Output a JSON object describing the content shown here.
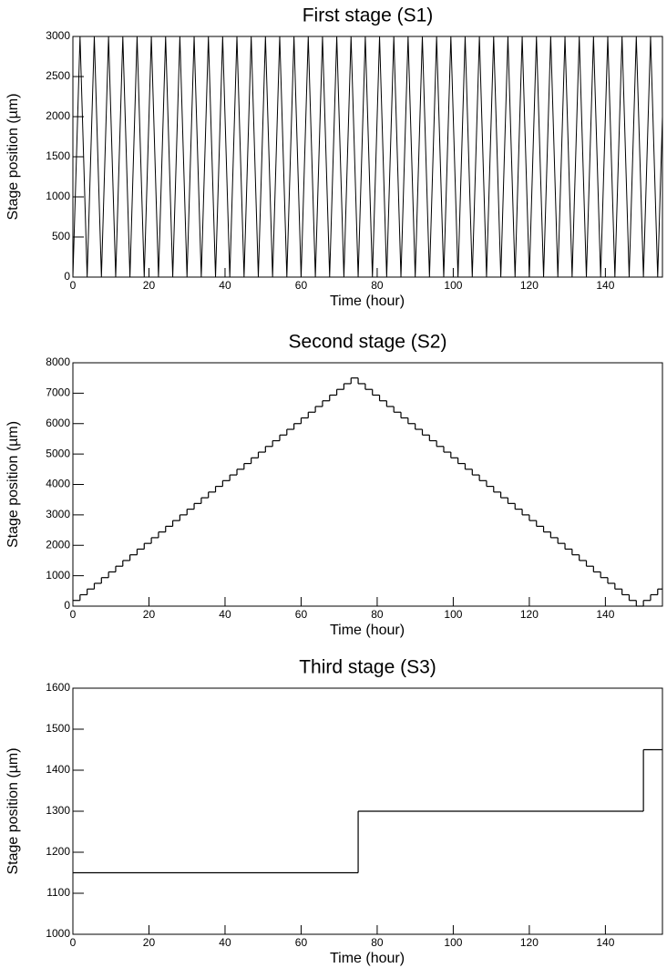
{
  "chart_data": [
    {
      "type": "line",
      "title": "First stage (S1)",
      "xlabel": "Time (hour)",
      "ylabel": "Stage position (µm)",
      "color": "#000000",
      "x": [
        0,
        1.875,
        3.75,
        5.625,
        7.5,
        9.375,
        11.25,
        13.125,
        15,
        16.875,
        18.75,
        20.625,
        22.5,
        24.375,
        26.25,
        28.125,
        30,
        31.875,
        33.75,
        35.625,
        37.5,
        39.375,
        41.25,
        43.125,
        45,
        46.875,
        48.75,
        50.625,
        52.5,
        54.375,
        56.25,
        58.125,
        60,
        61.875,
        63.75,
        65.625,
        67.5,
        69.375,
        71.25,
        73.125,
        75,
        76.875,
        78.75,
        80.625,
        82.5,
        84.375,
        86.25,
        88.125,
        90,
        91.875,
        93.75,
        95.625,
        97.5,
        99.375,
        101.25,
        103.125,
        105,
        106.875,
        108.75,
        110.625,
        112.5,
        114.375,
        116.25,
        118.125,
        120,
        121.875,
        123.75,
        125.625,
        127.5,
        129.375,
        131.25,
        133.125,
        135,
        136.875,
        138.75,
        140.625,
        142.5,
        144.375,
        146.25,
        148.125,
        150,
        151.875,
        153.75,
        155
      ],
      "values": [
        0,
        3000,
        0,
        3000,
        0,
        3000,
        0,
        3000,
        0,
        3000,
        0,
        3000,
        0,
        3000,
        0,
        3000,
        0,
        3000,
        0,
        3000,
        0,
        3000,
        0,
        3000,
        0,
        3000,
        0,
        3000,
        0,
        3000,
        0,
        3000,
        0,
        3000,
        0,
        3000,
        0,
        3000,
        0,
        3000,
        0,
        3000,
        0,
        3000,
        0,
        3000,
        0,
        3000,
        0,
        3000,
        0,
        3000,
        0,
        3000,
        0,
        3000,
        0,
        3000,
        0,
        3000,
        0,
        3000,
        0,
        3000,
        0,
        3000,
        0,
        3000,
        0,
        3000,
        0,
        3000,
        0,
        3000,
        0,
        3000,
        0,
        3000,
        0,
        3000,
        0,
        3000,
        0,
        2000
      ],
      "xlim": [
        0,
        155
      ],
      "xticks": [
        0,
        20,
        40,
        60,
        80,
        100,
        120,
        140
      ],
      "ylim": [
        0,
        3000
      ],
      "yticks": [
        0,
        500,
        1000,
        1500,
        2000,
        2500,
        3000
      ]
    },
    {
      "type": "step",
      "title": "Second stage (S2)",
      "xlabel": "Time (hour)",
      "ylabel": "Stage position (µm)",
      "color": "#000000",
      "x": [
        0,
        1.875,
        3.75,
        5.625,
        7.5,
        9.375,
        11.25,
        13.125,
        15,
        16.875,
        18.75,
        20.625,
        22.5,
        24.375,
        26.25,
        28.125,
        30,
        31.875,
        33.75,
        35.625,
        37.5,
        39.375,
        41.25,
        43.125,
        45,
        46.875,
        48.75,
        50.625,
        52.5,
        54.375,
        56.25,
        58.125,
        60,
        61.875,
        63.75,
        65.625,
        67.5,
        69.375,
        71.25,
        73.125,
        75,
        76.875,
        78.75,
        80.625,
        82.5,
        84.375,
        86.25,
        88.125,
        90,
        91.875,
        93.75,
        95.625,
        97.5,
        99.375,
        101.25,
        103.125,
        105,
        106.875,
        108.75,
        110.625,
        112.5,
        114.375,
        116.25,
        118.125,
        120,
        121.875,
        123.75,
        125.625,
        127.5,
        129.375,
        131.25,
        133.125,
        135,
        136.875,
        138.75,
        140.625,
        142.5,
        144.375,
        146.25,
        148.125,
        150,
        151.875,
        153.75
      ],
      "values": [
        187.5,
        375,
        562.5,
        750,
        937.5,
        1125,
        1312.5,
        1500,
        1687.5,
        1875,
        2062.5,
        2250,
        2437.5,
        2625,
        2812.5,
        3000,
        3187.5,
        3375,
        3562.5,
        3750,
        3937.5,
        4125,
        4312.5,
        4500,
        4687.5,
        4875,
        5062.5,
        5250,
        5437.5,
        5625,
        5812.5,
        6000,
        6187.5,
        6375,
        6562.5,
        6750,
        6937.5,
        7125,
        7312.5,
        7500,
        7312.5,
        7125,
        6937.5,
        6750,
        6562.5,
        6375,
        6187.5,
        6000,
        5812.5,
        5625,
        5437.5,
        5250,
        5062.5,
        4875,
        4687.5,
        4500,
        4312.5,
        4125,
        3937.5,
        3750,
        3562.5,
        3375,
        3187.5,
        3000,
        2812.5,
        2625,
        2437.5,
        2250,
        2062.5,
        1875,
        1687.5,
        1500,
        1312.5,
        1125,
        937.5,
        750,
        562.5,
        375,
        187.5,
        0,
        187.5,
        375,
        562.5
      ],
      "xlim": [
        0,
        155
      ],
      "xticks": [
        0,
        20,
        40,
        60,
        80,
        100,
        120,
        140
      ],
      "ylim": [
        0,
        8000
      ],
      "yticks": [
        0,
        1000,
        2000,
        3000,
        4000,
        5000,
        6000,
        7000,
        8000
      ]
    },
    {
      "type": "step",
      "title": "Third stage (S3)",
      "xlabel": "Time (hour)",
      "ylabel": "Stage position (µm)",
      "color": "#000000",
      "x": [
        0,
        75,
        150
      ],
      "values": [
        1150,
        1300,
        1450
      ],
      "xlim": [
        0,
        155
      ],
      "xticks": [
        0,
        20,
        40,
        60,
        80,
        100,
        120,
        140
      ],
      "ylim": [
        1000,
        1600
      ],
      "yticks": [
        1000,
        1100,
        1200,
        1300,
        1400,
        1500,
        1600
      ]
    }
  ]
}
